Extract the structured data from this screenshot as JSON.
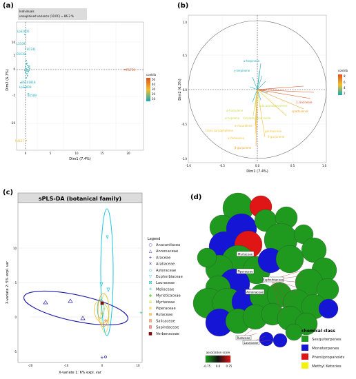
{
  "panels": {
    "a": {
      "label": "(a)",
      "info_line1": "Individuals",
      "info_line2": "unexplained variance (10 PC) =   86.3 %",
      "xlabel": "Dim1 (7.4%)",
      "ylabel": "Dim2 (6.3%)",
      "x_ticks": [
        "0",
        "5",
        "10",
        "15",
        "20"
      ],
      "y_ticks": [
        "10",
        "5",
        "0",
        "-5",
        "-10"
      ],
      "legend_title": "contrib",
      "legend_ticks": [
        "50",
        "40",
        "30",
        "20",
        "10"
      ],
      "point_labels": [
        "LpS2006",
        "L5109",
        "B1741",
        "B1639",
        "BS101818",
        "LpS2009",
        "B1589",
        "R1739",
        "R4157"
      ]
    },
    "b": {
      "label": "(b)",
      "xlabel": "Dim1 (7.4%)",
      "ylabel": "Dim2 (6.3%)",
      "x_ticks": [
        "-1.0",
        "-0.5",
        "0.0",
        "0.5",
        "1.0"
      ],
      "y_ticks": [
        "1.0",
        "0.5",
        "0.0",
        "-0.5",
        "-1.0"
      ],
      "legend_title": "contrib",
      "legend_ticks": [
        "8",
        "6",
        "4",
        "2"
      ],
      "vector_labels": [
        "α-terpinene",
        "γ-terpinene",
        "1, 8-cineole",
        "allo-aromadendrene",
        "spathulenol",
        "α-humulene",
        "α-copaene",
        "caryophyllene oxide",
        "α-muurolene",
        "trans-caryophyllene",
        "germacrene",
        "α-farnesene",
        "β-gurjunene",
        "δ-gurjunene"
      ]
    },
    "c": {
      "label": "(c)",
      "title": "sPLS-DA (botanical family)",
      "xlabel": "X-variate 1: 6% expl. var",
      "ylabel": "X-variate 2: 5% expl. var",
      "x_ticks": [
        "-20",
        "-10",
        "0",
        "10"
      ],
      "y_ticks": [
        "10",
        "5",
        "0",
        "-5"
      ],
      "legend_title": "Legend",
      "legend": [
        {
          "name": "Anacardiacea",
          "color": "#1a1aa8",
          "symbol": "○"
        },
        {
          "name": "Annonaceae",
          "color": "#1a1aa8",
          "symbol": "△"
        },
        {
          "name": "Araceae",
          "color": "#1a1aa8",
          "symbol": "+"
        },
        {
          "name": "Araliaceae",
          "color": "#1a1aa8",
          "symbol": "×"
        },
        {
          "name": "Asteraceae",
          "color": "#1a9fd6",
          "symbol": "◇"
        },
        {
          "name": "Euphorbiaceae",
          "color": "#1ec8e0",
          "symbol": "▽"
        },
        {
          "name": "Lauraceae",
          "color": "#1db8c8",
          "symbol": "⊠"
        },
        {
          "name": "Meliaceae",
          "color": "#3ec7a0",
          "symbol": "✳"
        },
        {
          "name": "Myristicaceae",
          "color": "#7ed957",
          "symbol": "◆"
        },
        {
          "name": "Myrtaceae",
          "color": "#c9d94a",
          "symbol": "⊕"
        },
        {
          "name": "Piperaceae",
          "color": "#f0c230",
          "symbol": "⊗"
        },
        {
          "name": "Rutaceae",
          "color": "#f0a020",
          "symbol": "⊞"
        },
        {
          "name": "Salicaceae",
          "color": "#e06020",
          "symbol": "⊠"
        },
        {
          "name": "Sapindaceae",
          "color": "#c83020",
          "symbol": "⊠"
        },
        {
          "name": "Verbenaceae",
          "color": "#7a1010",
          "symbol": "■"
        }
      ]
    },
    "d": {
      "label": "(d)",
      "node_labels": [
        "Myrtaceae",
        "Piperaceae",
        "Euphorbiaceae",
        "Annonaceae",
        "Rutaceae",
        "Lauraceae"
      ],
      "scale_title": "association score",
      "scale_ticks": [
        "-0.75",
        "0.0",
        "0.75"
      ],
      "class_title": "chemical class",
      "classes": [
        {
          "name": "Sesquiterpenes",
          "color": "#1f9a1f"
        },
        {
          "name": "Monoterpenes",
          "color": "#1515d6"
        },
        {
          "name": "Phenilpropanoids",
          "color": "#e01515"
        },
        {
          "name": "Methyl Ketories",
          "color": "#f2f20a"
        }
      ]
    }
  }
}
